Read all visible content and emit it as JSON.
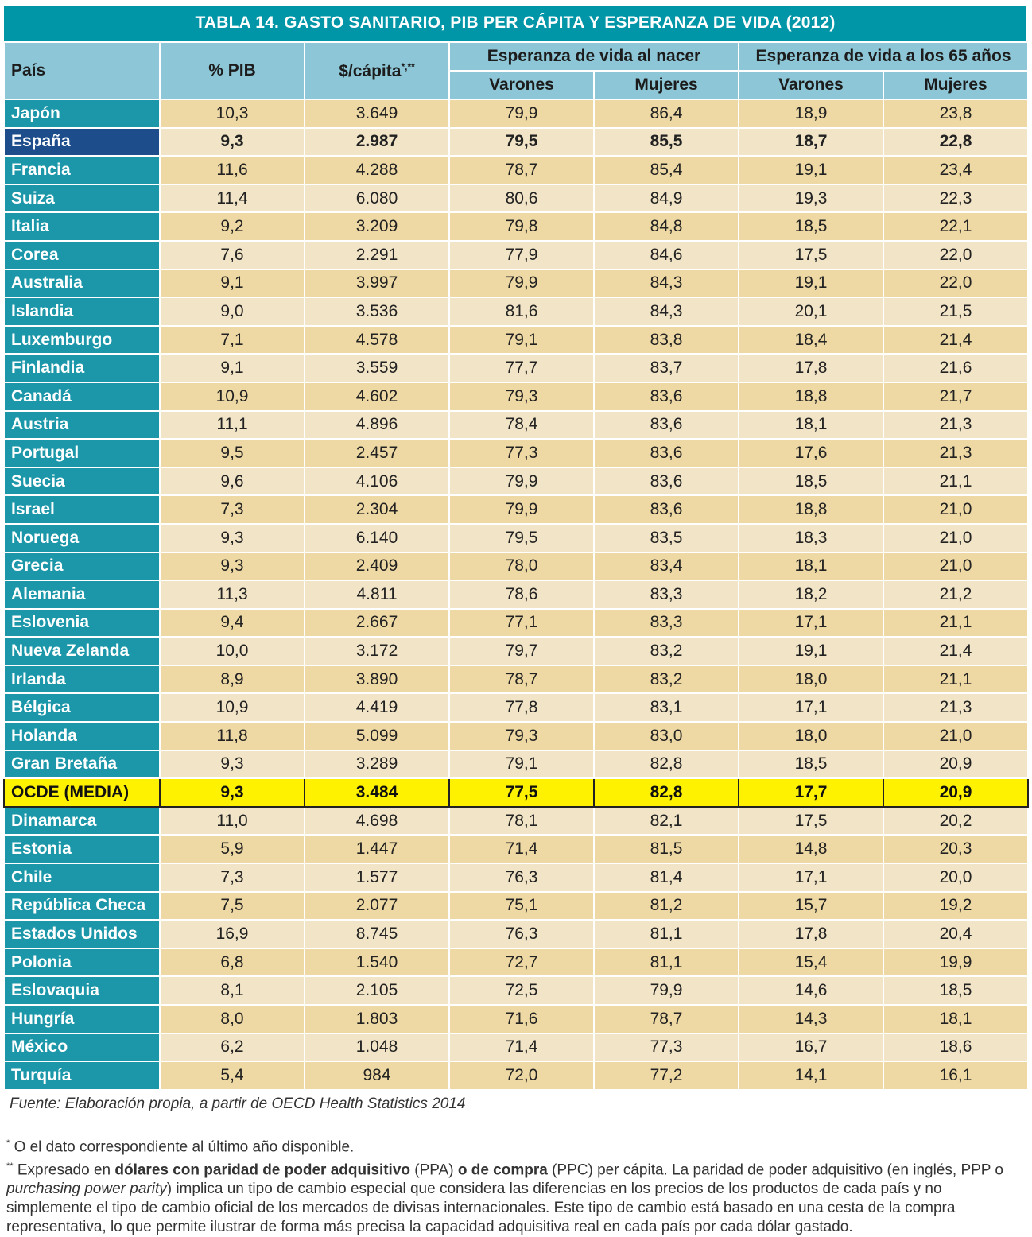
{
  "title": "TABLA 14. GASTO SANITARIO, PIB PER CÁPITA Y ESPERANZA DE VIDA (2012)",
  "headers": {
    "pais": "País",
    "pib": "% PIB",
    "capita": "$/cápita",
    "capita_sup": "*,**",
    "group_nacer": "Esperanza de vida al nacer",
    "group_65": "Esperanza de vida a los 65 años",
    "varones": "Varones",
    "mujeres": "Mujeres"
  },
  "rows": [
    [
      "Japón",
      "10,3",
      "3.649",
      "79,9",
      "86,4",
      "18,9",
      "23,8"
    ],
    [
      "España",
      "9,3",
      "2.987",
      "79,5",
      "85,5",
      "18,7",
      "22,8"
    ],
    [
      "Francia",
      "11,6",
      "4.288",
      "78,7",
      "85,4",
      "19,1",
      "23,4"
    ],
    [
      "Suiza",
      "11,4",
      "6.080",
      "80,6",
      "84,9",
      "19,3",
      "22,3"
    ],
    [
      "Italia",
      "9,2",
      "3.209",
      "79,8",
      "84,8",
      "18,5",
      "22,1"
    ],
    [
      "Corea",
      "7,6",
      "2.291",
      "77,9",
      "84,6",
      "17,5",
      "22,0"
    ],
    [
      "Australia",
      "9,1",
      "3.997",
      "79,9",
      "84,3",
      "19,1",
      "22,0"
    ],
    [
      "Islandia",
      "9,0",
      "3.536",
      "81,6",
      "84,3",
      "20,1",
      "21,5"
    ],
    [
      "Luxemburgo",
      "7,1",
      "4.578",
      "79,1",
      "83,8",
      "18,4",
      "21,4"
    ],
    [
      "Finlandia",
      "9,1",
      "3.559",
      "77,7",
      "83,7",
      "17,8",
      "21,6"
    ],
    [
      "Canadá",
      "10,9",
      "4.602",
      "79,3",
      "83,6",
      "18,8",
      "21,7"
    ],
    [
      "Austria",
      "11,1",
      "4.896",
      "78,4",
      "83,6",
      "18,1",
      "21,3"
    ],
    [
      "Portugal",
      "9,5",
      "2.457",
      "77,3",
      "83,6",
      "17,6",
      "21,3"
    ],
    [
      "Suecia",
      "9,6",
      "4.106",
      "79,9",
      "83,6",
      "18,5",
      "21,1"
    ],
    [
      "Israel",
      "7,3",
      "2.304",
      "79,9",
      "83,6",
      "18,8",
      "21,0"
    ],
    [
      "Noruega",
      "9,3",
      "6.140",
      "79,5",
      "83,5",
      "18,3",
      "21,0"
    ],
    [
      "Grecia",
      "9,3",
      "2.409",
      "78,0",
      "83,4",
      "18,1",
      "21,0"
    ],
    [
      "Alemania",
      "11,3",
      "4.811",
      "78,6",
      "83,3",
      "18,2",
      "21,2"
    ],
    [
      "Eslovenia",
      "9,4",
      "2.667",
      "77,1",
      "83,3",
      "17,1",
      "21,1"
    ],
    [
      "Nueva Zelanda",
      "10,0",
      "3.172",
      "79,7",
      "83,2",
      "19,1",
      "21,4"
    ],
    [
      "Irlanda",
      "8,9",
      "3.890",
      "78,7",
      "83,2",
      "18,0",
      "21,1"
    ],
    [
      "Bélgica",
      "10,9",
      "4.419",
      "77,8",
      "83,1",
      "17,1",
      "21,3"
    ],
    [
      "Holanda",
      "11,8",
      "5.099",
      "79,3",
      "83,0",
      "18,0",
      "21,0"
    ],
    [
      "Gran Bretaña",
      "9,3",
      "3.289",
      "79,1",
      "82,8",
      "18,5",
      "20,9"
    ],
    [
      "OCDE (MEDIA)",
      "9,3",
      "3.484",
      "77,5",
      "82,8",
      "17,7",
      "20,9"
    ],
    [
      "Dinamarca",
      "11,0",
      "4.698",
      "78,1",
      "82,1",
      "17,5",
      "20,2"
    ],
    [
      "Estonia",
      "5,9",
      "1.447",
      "71,4",
      "81,5",
      "14,8",
      "20,3"
    ],
    [
      "Chile",
      "7,3",
      "1.577",
      "76,3",
      "81,4",
      "17,1",
      "20,0"
    ],
    [
      "República Checa",
      "7,5",
      "2.077",
      "75,1",
      "81,2",
      "15,7",
      "19,2"
    ],
    [
      "Estados Unidos",
      "16,9",
      "8.745",
      "76,3",
      "81,1",
      "17,8",
      "20,4"
    ],
    [
      "Polonia",
      "6,8",
      "1.540",
      "72,7",
      "81,1",
      "15,4",
      "19,9"
    ],
    [
      "Eslovaquia",
      "8,1",
      "2.105",
      "72,5",
      "79,9",
      "14,6",
      "18,5"
    ],
    [
      "Hungría",
      "8,0",
      "1.803",
      "71,6",
      "78,7",
      "14,3",
      "18,1"
    ],
    [
      "México",
      "6,2",
      "1.048",
      "71,4",
      "77,3",
      "16,7",
      "18,6"
    ],
    [
      "Turquía",
      "5,4",
      "984",
      "72,0",
      "77,2",
      "14,1",
      "16,1"
    ]
  ],
  "source": "Fuente: Elaboración propia, a partir de OECD Health Statistics 2014",
  "notes": {
    "n1_mark": "*",
    "n1_text": "O el dato correspondiente al último año disponible.",
    "n2_mark": "**",
    "n2_a": "Expresado en",
    "n2_b": "dólares con paridad de poder adquisitivo",
    "n2_c": "(PPA)",
    "n2_d": "o de compra",
    "n2_e": "(PPC) per cápita. La paridad de poder adquisitivo (en inglés, PPP o",
    "n2_f": "purchasing power parity",
    "n2_g": ") implica un tipo de cambio especial que considera las diferencias en los precios de los productos de cada país y no simplemente el tipo de cambio oficial de los mercados de divisas internacionales. Este tipo de cambio está basado en una cesta de la compra representativa, lo que permite ilustrar de forma más precisa la capacidad adquisitiva real en cada país por cada dólar gastado."
  }
}
